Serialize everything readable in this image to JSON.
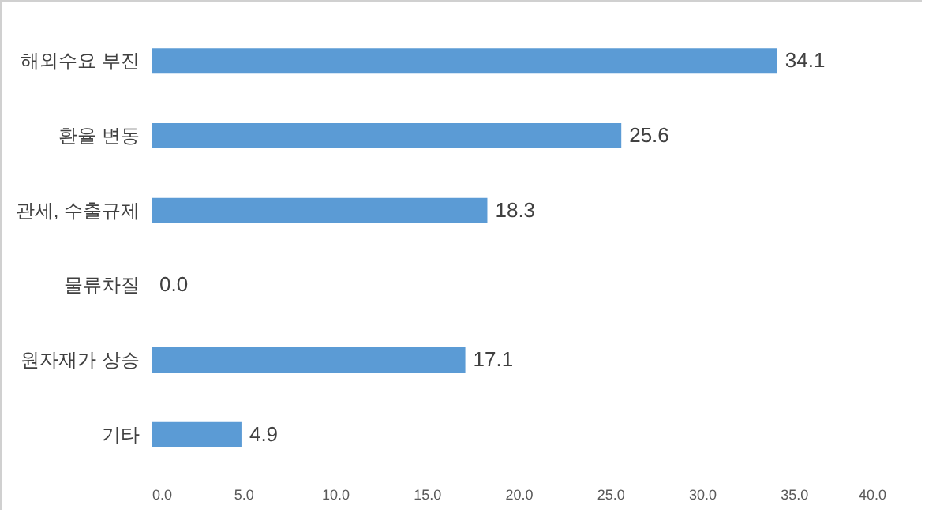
{
  "chart_data": {
    "type": "bar",
    "orientation": "horizontal",
    "categories": [
      "해외수요 부진",
      "환율 변동",
      "관세, 수출규제",
      "물류차질",
      "원자재가 상승",
      "기타"
    ],
    "values": [
      34.1,
      25.6,
      18.3,
      0.0,
      17.1,
      4.9
    ],
    "value_labels": [
      "34.1",
      "25.6",
      "18.3",
      "0.0",
      "17.1",
      "4.9"
    ],
    "color": "#5b9bd5",
    "xlim": [
      0,
      40
    ],
    "xticks": [
      {
        "value": 0,
        "label": "0.0"
      },
      {
        "value": 5,
        "label": "5.0"
      },
      {
        "value": 10,
        "label": "10.0"
      },
      {
        "value": 15,
        "label": "15.0"
      },
      {
        "value": 20,
        "label": "20.0"
      },
      {
        "value": 25,
        "label": "25.0"
      },
      {
        "value": 30,
        "label": "30.0"
      },
      {
        "value": 35,
        "label": "35.0"
      },
      {
        "value": 40,
        "label": "40.0"
      }
    ],
    "grid": false
  }
}
